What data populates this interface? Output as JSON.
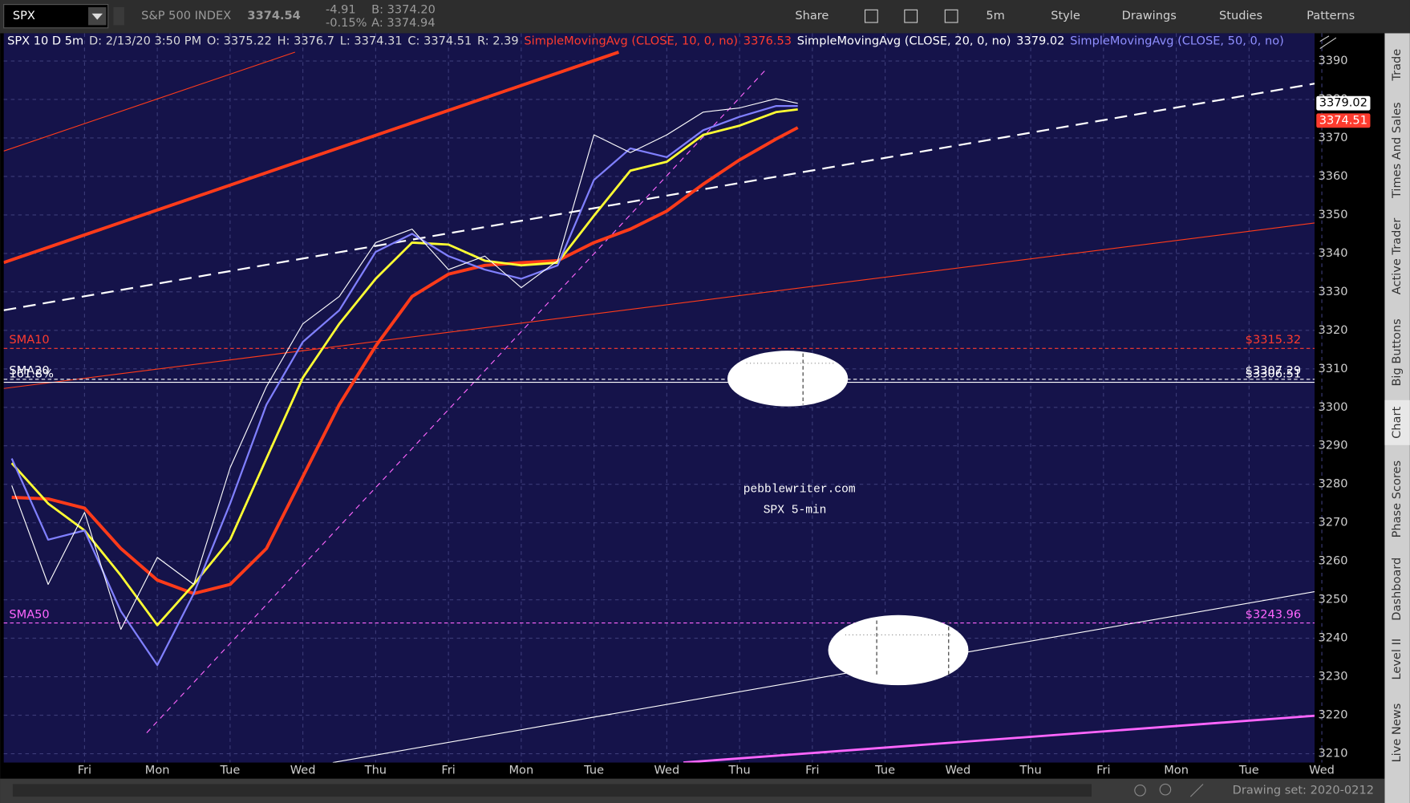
{
  "toolbar": {
    "symbol": "SPX",
    "description": "S&P 500 INDEX",
    "last": "3374.54",
    "change": "-4.91",
    "change_pct": "-0.15%",
    "bid": "B: 3374.20",
    "ask": "A: 3374.94",
    "buttons": [
      "Share",
      "5m",
      "Style",
      "Drawings",
      "Studies",
      "Patterns"
    ]
  },
  "chart_data": {
    "type": "line",
    "header": [
      {
        "text": "SPX 10 D 5m",
        "color": "#ffffff"
      },
      {
        "text": "D: 2/13/20 3:50 PM",
        "color": "#d8d8d8"
      },
      {
        "text": "O: 3375.22",
        "color": "#d8d8d8"
      },
      {
        "text": "H: 3376.7",
        "color": "#d8d8d8"
      },
      {
        "text": "L: 3374.31",
        "color": "#d8d8d8"
      },
      {
        "text": "C: 3374.51",
        "color": "#d8d8d8"
      },
      {
        "text": "R: 2.39",
        "color": "#d8d8d8"
      },
      {
        "text": "SimpleMovingAvg (CLOSE, 10, 0, no)",
        "color": "#ff3b2e"
      },
      {
        "text": "3376.53",
        "color": "#ff3b2e"
      },
      {
        "text": "SimpleMovingAvg (CLOSE, 20, 0, no)",
        "color": "#ffffff"
      },
      {
        "text": "3379.02",
        "color": "#ffffff"
      },
      {
        "text": "SimpleMovingAvg (CLOSE, 50, 0, no)",
        "color": "#8f8fff"
      }
    ],
    "x": [
      0,
      0.5,
      1,
      1.5,
      2,
      2.5,
      3,
      3.5,
      4,
      4.5,
      5,
      5.5,
      6,
      6.5,
      7,
      7.5,
      8,
      8.5,
      9,
      9.5,
      10,
      10.5,
      10.8
    ],
    "series": [
      {
        "color": "#ff3b1a",
        "width": 3.5,
        "values": [
          3276.6,
          3276.2,
          3273.8,
          3263.3,
          3255.1,
          3251.6,
          3254,
          3263.3,
          3282,
          3300.7,
          3315.9,
          3328.8,
          3334.6,
          3336.9,
          3337.6,
          3338.1,
          3342.8,
          3346.3,
          3351,
          3358,
          3364.3,
          3369.7,
          3372.7
        ]
      },
      {
        "color": "#ffff33",
        "width": 2.5,
        "values": [
          3285.5,
          3275,
          3268,
          3256.3,
          3243.4,
          3254,
          3265.6,
          3286.7,
          3307.7,
          3321.7,
          3333.4,
          3342.8,
          3342.3,
          3338.1,
          3336.9,
          3337.6,
          3349.8,
          3361.5,
          3363.8,
          3370.8,
          3373.2,
          3376.7,
          3377.4
        ]
      },
      {
        "color": "#8080ff",
        "width": 2,
        "values": [
          3286.7,
          3265.6,
          3268,
          3247,
          3233,
          3251.6,
          3275,
          3300.7,
          3317,
          3325.2,
          3340.4,
          3345.1,
          3339.3,
          3335.8,
          3333.4,
          3336.9,
          3359.1,
          3367.3,
          3365,
          3372,
          3375.5,
          3378.3,
          3378.3
        ]
      },
      {
        "color": "#ffffff",
        "width": 1,
        "values": [
          3279.7,
          3254,
          3272.7,
          3242.3,
          3261,
          3254,
          3284.3,
          3305.4,
          3321.7,
          3328.8,
          3342.8,
          3346.3,
          3335.8,
          3339.3,
          3331.1,
          3338.1,
          3370.8,
          3366.2,
          3370.8,
          3376.7,
          3377.8,
          3380.2,
          3379
        ]
      }
    ],
    "xlim": [
      -0.11,
      17.9
    ],
    "ylim": [
      3207.7,
      3397.2
    ],
    "yticks": [
      3210,
      3220,
      3230,
      3240,
      3250,
      3260,
      3270,
      3280,
      3290,
      3300,
      3310,
      3320,
      3330,
      3340,
      3350,
      3360,
      3370,
      3380,
      3390
    ],
    "xticks": [
      {
        "value": 1,
        "label": "Fri"
      },
      {
        "value": 2,
        "label": "Mon"
      },
      {
        "value": 3,
        "label": "Tue"
      },
      {
        "value": 4,
        "label": "Wed"
      },
      {
        "value": 5,
        "label": "Thu"
      },
      {
        "value": 6,
        "label": "Fri"
      },
      {
        "value": 7,
        "label": "Mon"
      },
      {
        "value": 8,
        "label": "Tue"
      },
      {
        "value": 9,
        "label": "Wed"
      },
      {
        "value": 10,
        "label": "Thu"
      },
      {
        "value": 11,
        "label": "Fri"
      },
      {
        "value": 12,
        "label": "Tue"
      },
      {
        "value": 13,
        "label": "Wed"
      },
      {
        "value": 14,
        "label": "Thu"
      },
      {
        "value": 15,
        "label": "Fri"
      },
      {
        "value": 16,
        "label": "Mon"
      },
      {
        "value": 17,
        "label": "Tue"
      },
      {
        "value": 18,
        "label": "Wed"
      }
    ],
    "grid": true,
    "price_lines": [
      {
        "name": "SMA10",
        "value": 3315.32,
        "label": "$3315.32",
        "color": "#ff3b2e",
        "style": "dashed"
      },
      {
        "name": "SMA20",
        "value": 3307.29,
        "label": "$3307.29",
        "color": "#ffffff",
        "style": "dashed"
      },
      {
        "name": "161.8%",
        "value": 3306.51,
        "label": "$3306.51",
        "color": "#ffffff",
        "style": "solid"
      },
      {
        "name": "SMA50",
        "value": 3243.96,
        "label": "$3243.96",
        "color": "#ff66ff",
        "style": "dashed"
      }
    ],
    "badges": [
      {
        "value": 3379.02,
        "color": "#ffffff",
        "text_color": "#000000"
      },
      {
        "value": 3374.51,
        "color": "#ff3b2e",
        "text_color": "#ffffff"
      }
    ],
    "watermark": [
      "pebblewriter.com",
      "SPX 5-min"
    ]
  },
  "sidebar": {
    "tabs": [
      "Trade",
      "Times And Sales",
      "Active Trader",
      "Big Buttons",
      "Chart",
      "Phase Scores",
      "Dashboard",
      "Level II",
      "Live News"
    ]
  },
  "status": {
    "drawing_set": "Drawing set: 2020-0212"
  }
}
